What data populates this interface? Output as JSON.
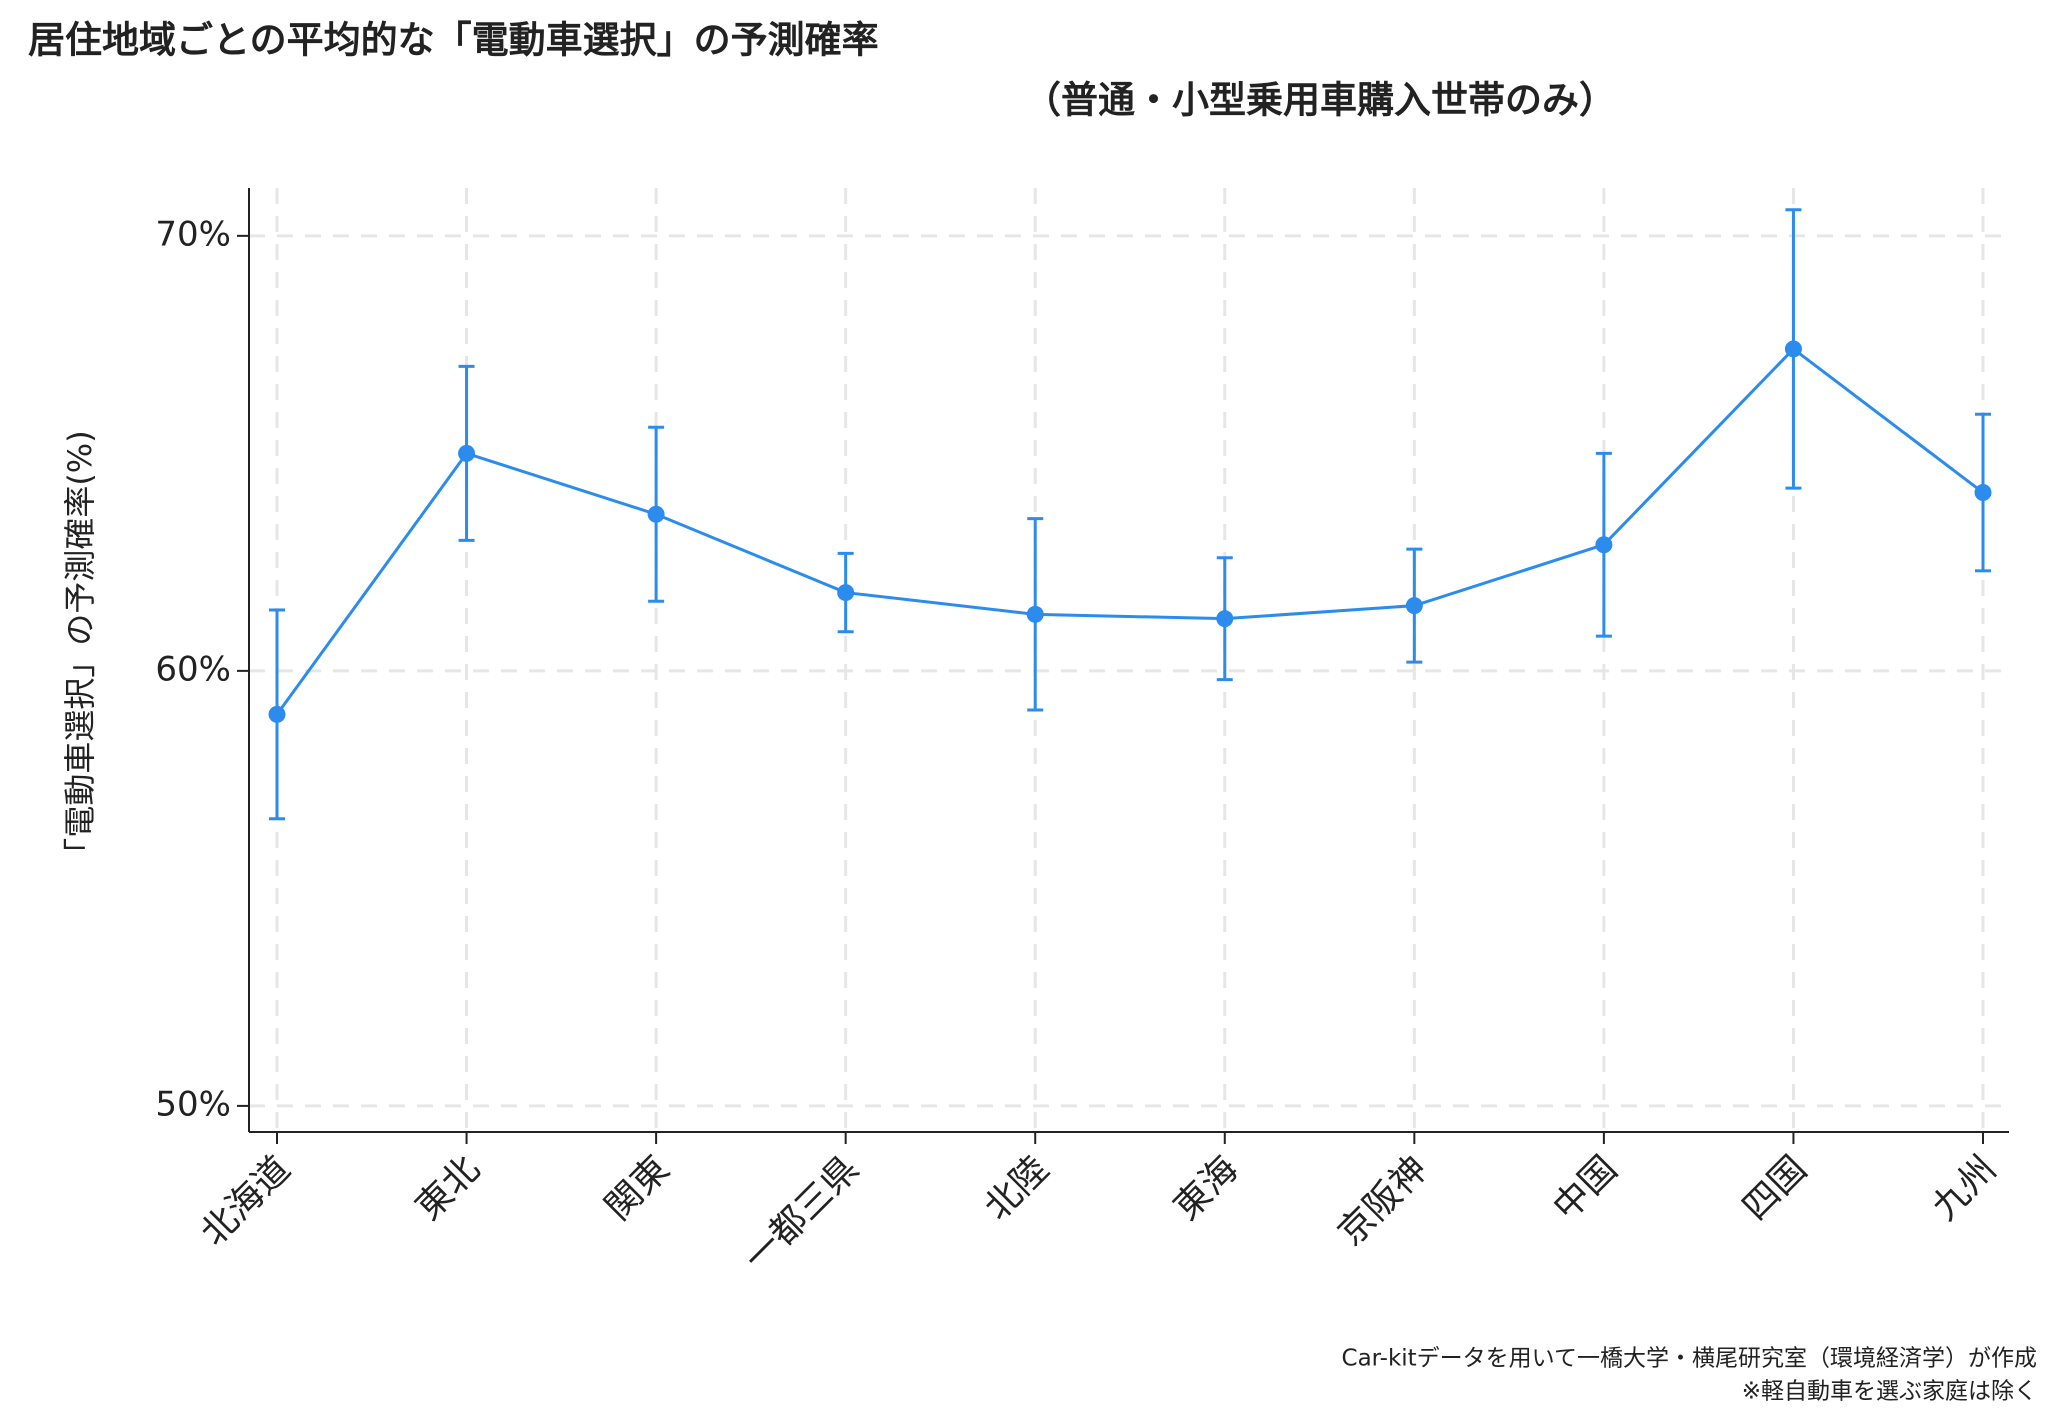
{
  "chart_data": {
    "type": "line",
    "title": "居住地域ごとの平均的な「電動車選択」の予測確率",
    "subtitle": "（普通・小型乗用車購入世帯のみ）",
    "y_label": "「電動車選択」の予測確率(%)",
    "notes": [
      "Car-kitデータを用いて一橋大学・横尾研究室（環境経済学）が作成",
      "※軽自動車を選ぶ家庭は除く"
    ],
    "categories": [
      "北海道",
      "東北",
      "関東",
      "一都三県",
      "北陸",
      "東海",
      "京阪神",
      "中国",
      "四国",
      "九州"
    ],
    "series": [
      {
        "color": "#2b8cee",
        "values": [
          59.0,
          65.0,
          63.6,
          61.8,
          61.3,
          61.2,
          61.5,
          62.9,
          67.4,
          64.1
        ],
        "errors": [
          2.4,
          2.0,
          2.0,
          0.9,
          2.2,
          1.4,
          1.3,
          2.1,
          3.2,
          1.8
        ]
      }
    ],
    "ylim": [
      49.4,
      71.1
    ],
    "yticks": [
      {
        "value": 50,
        "label": "50%"
      },
      {
        "value": 60,
        "label": "60%"
      },
      {
        "value": 70,
        "label": "70%"
      }
    ],
    "grid": true
  }
}
